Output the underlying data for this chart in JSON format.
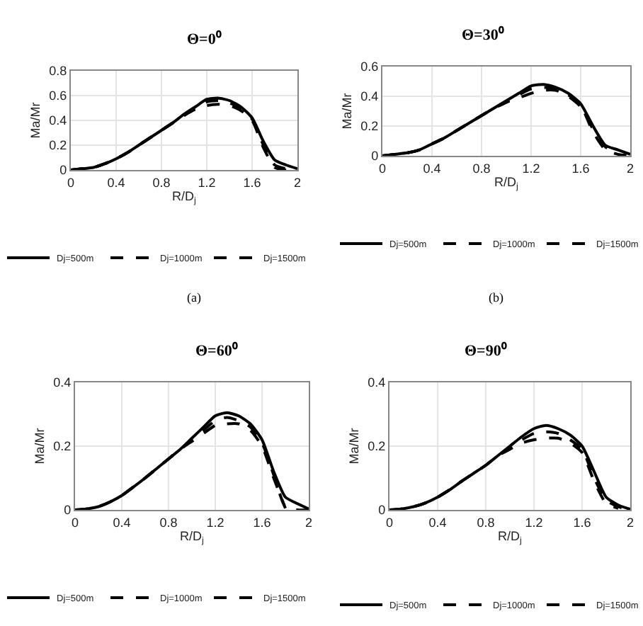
{
  "chart_data": [
    {
      "type": "line",
      "title": "Θ=0⁰",
      "xlabel": "R/D$_{j}$",
      "ylabel": "Ma/Mr",
      "annotations": [
        "(a)"
      ],
      "grid": true,
      "legend": "bottom",
      "x": [
        0,
        0.1,
        0.2,
        0.3,
        0.4,
        0.5,
        0.6,
        0.7,
        0.8,
        0.9,
        1.0,
        1.1,
        1.2,
        1.3,
        1.4,
        1.5,
        1.6,
        1.7,
        1.8,
        1.9,
        2.0
      ],
      "xlim": [
        0,
        2
      ],
      "xticks": [
        0,
        0.4,
        0.8,
        1.2,
        1.6,
        2
      ],
      "ylim": [
        0,
        0.8
      ],
      "yticks": [
        0,
        0.2,
        0.4,
        0.6,
        0.8
      ],
      "series": [
        {
          "name": "Dj=500m",
          "color": "#000000",
          "line_style": "solid",
          "values": [
            0,
            0.01,
            0.02,
            0.05,
            0.09,
            0.14,
            0.2,
            0.26,
            0.32,
            0.38,
            0.45,
            0.51,
            0.57,
            0.58,
            0.56,
            0.51,
            0.42,
            0.23,
            0.08,
            0.04,
            0.01
          ]
        },
        {
          "name": "Dj=1000m",
          "color": "#000000",
          "line_style": "dashed",
          "values": [
            0,
            0.01,
            0.02,
            0.05,
            0.09,
            0.14,
            0.2,
            0.26,
            0.32,
            0.38,
            0.44,
            0.5,
            0.55,
            0.56,
            0.54,
            0.5,
            0.41,
            0.2,
            0.04,
            0.01,
            0
          ]
        },
        {
          "name": "Dj=1500m",
          "color": "#000000",
          "line_style": "dashed",
          "values": [
            0,
            0.01,
            0.02,
            0.05,
            0.09,
            0.14,
            0.2,
            0.26,
            0.32,
            0.38,
            0.44,
            0.49,
            0.52,
            0.53,
            0.52,
            0.48,
            0.4,
            0.18,
            0.02,
            0,
            null
          ]
        }
      ]
    },
    {
      "type": "line",
      "title": "Θ=30⁰",
      "xlabel": "R/D$_{j}$",
      "ylabel": "Ma/Mr",
      "annotations": [
        "(b)"
      ],
      "grid": true,
      "legend": "bottom",
      "x": [
        0,
        0.1,
        0.2,
        0.3,
        0.4,
        0.5,
        0.6,
        0.7,
        0.8,
        0.9,
        1.0,
        1.1,
        1.2,
        1.3,
        1.4,
        1.5,
        1.6,
        1.7,
        1.8,
        1.9,
        2.0
      ],
      "xlim": [
        0,
        2
      ],
      "xticks": [
        0,
        0.4,
        0.8,
        1.2,
        1.6,
        2
      ],
      "ylim": [
        0,
        0.6
      ],
      "yticks": [
        0,
        0.2,
        0.4,
        0.6
      ],
      "series": [
        {
          "name": "Dj=500m",
          "color": "#000000",
          "line_style": "solid",
          "values": [
            0,
            0.01,
            0.02,
            0.04,
            0.08,
            0.12,
            0.17,
            0.22,
            0.27,
            0.32,
            0.37,
            0.42,
            0.47,
            0.48,
            0.46,
            0.42,
            0.35,
            0.2,
            0.07,
            0.04,
            0.01
          ]
        },
        {
          "name": "Dj=1000m",
          "color": "#000000",
          "line_style": "dashed",
          "values": [
            0,
            0.01,
            0.02,
            0.04,
            0.08,
            0.12,
            0.17,
            0.22,
            0.27,
            0.32,
            0.36,
            0.41,
            0.45,
            0.46,
            0.45,
            0.41,
            0.34,
            0.16,
            0.04,
            0.01,
            0
          ]
        },
        {
          "name": "Dj=1500m",
          "color": "#000000",
          "line_style": "dashed",
          "values": [
            0,
            0.01,
            0.02,
            0.04,
            0.08,
            0.12,
            0.17,
            0.22,
            0.27,
            0.32,
            0.36,
            0.39,
            0.42,
            0.44,
            0.44,
            0.4,
            0.33,
            0.18,
            0.06,
            0.02,
            null
          ]
        }
      ]
    },
    {
      "type": "line",
      "title": "Θ=60⁰",
      "xlabel": "R/D$_{j}$",
      "ylabel": "Ma/Mr",
      "grid": true,
      "legend": "bottom",
      "x": [
        0,
        0.1,
        0.2,
        0.3,
        0.4,
        0.5,
        0.6,
        0.7,
        0.8,
        0.9,
        1.0,
        1.1,
        1.2,
        1.3,
        1.4,
        1.5,
        1.6,
        1.7,
        1.8,
        1.9,
        2.0
      ],
      "xlim": [
        0,
        2
      ],
      "xticks": [
        0,
        0.4,
        0.8,
        1.2,
        1.6,
        2
      ],
      "ylim": [
        0,
        0.4
      ],
      "yticks": [
        0,
        0.2,
        0.4
      ],
      "series": [
        {
          "name": "Dj=500m",
          "color": "#000000",
          "line_style": "solid",
          "values": [
            0,
            0.003,
            0.01,
            0.025,
            0.045,
            0.072,
            0.1,
            0.13,
            0.16,
            0.19,
            0.225,
            0.26,
            0.295,
            0.305,
            0.295,
            0.27,
            0.22,
            0.12,
            0.04,
            0.02,
            0.003
          ]
        },
        {
          "name": "Dj=1000m",
          "color": "#000000",
          "line_style": "dashed",
          "values": [
            0,
            0.003,
            0.01,
            0.025,
            0.045,
            0.072,
            0.1,
            0.13,
            0.16,
            0.19,
            0.22,
            0.25,
            0.28,
            0.29,
            0.28,
            0.26,
            0.21,
            0.11,
            0.01,
            0,
            0
          ]
        },
        {
          "name": "Dj=1500m",
          "color": "#000000",
          "line_style": "dashed",
          "values": [
            0,
            0.003,
            0.01,
            0.025,
            0.045,
            0.072,
            0.1,
            0.13,
            0.16,
            0.19,
            0.215,
            0.24,
            0.265,
            0.27,
            0.27,
            0.25,
            0.2,
            0.1,
            0.005,
            null,
            null
          ]
        }
      ]
    },
    {
      "type": "line",
      "title": "Θ=90⁰",
      "xlabel": "R/D$_{j}$",
      "ylabel": "Ma/Mr",
      "grid": true,
      "legend": "bottom",
      "x": [
        0,
        0.1,
        0.2,
        0.3,
        0.4,
        0.5,
        0.6,
        0.7,
        0.8,
        0.9,
        1.0,
        1.1,
        1.2,
        1.3,
        1.4,
        1.5,
        1.6,
        1.7,
        1.8,
        1.9,
        2.0
      ],
      "xlim": [
        0,
        2
      ],
      "xticks": [
        0,
        0.4,
        0.8,
        1.2,
        1.6,
        2
      ],
      "ylim": [
        0,
        0.4
      ],
      "yticks": [
        0,
        0.2,
        0.4
      ],
      "series": [
        {
          "name": "Dj=500m",
          "color": "#000000",
          "line_style": "solid",
          "values": [
            0,
            0.003,
            0.01,
            0.022,
            0.04,
            0.063,
            0.09,
            0.115,
            0.14,
            0.17,
            0.2,
            0.23,
            0.255,
            0.265,
            0.255,
            0.235,
            0.2,
            0.12,
            0.04,
            0.015,
            0.002
          ]
        },
        {
          "name": "Dj=1000m",
          "color": "#000000",
          "line_style": "dashed",
          "values": [
            0,
            0.003,
            0.01,
            0.022,
            0.04,
            0.063,
            0.09,
            0.115,
            0.14,
            0.17,
            0.195,
            0.22,
            0.24,
            0.245,
            0.24,
            0.22,
            0.19,
            0.1,
            0.03,
            0.01,
            0
          ]
        },
        {
          "name": "Dj=1500m",
          "color": "#000000",
          "line_style": "dashed",
          "values": [
            0,
            0.003,
            0.01,
            0.022,
            0.04,
            0.063,
            0.09,
            0.115,
            0.14,
            0.17,
            0.19,
            0.21,
            0.22,
            0.225,
            0.225,
            0.21,
            0.18,
            0.09,
            0.02,
            0.005,
            null
          ]
        }
      ]
    }
  ]
}
